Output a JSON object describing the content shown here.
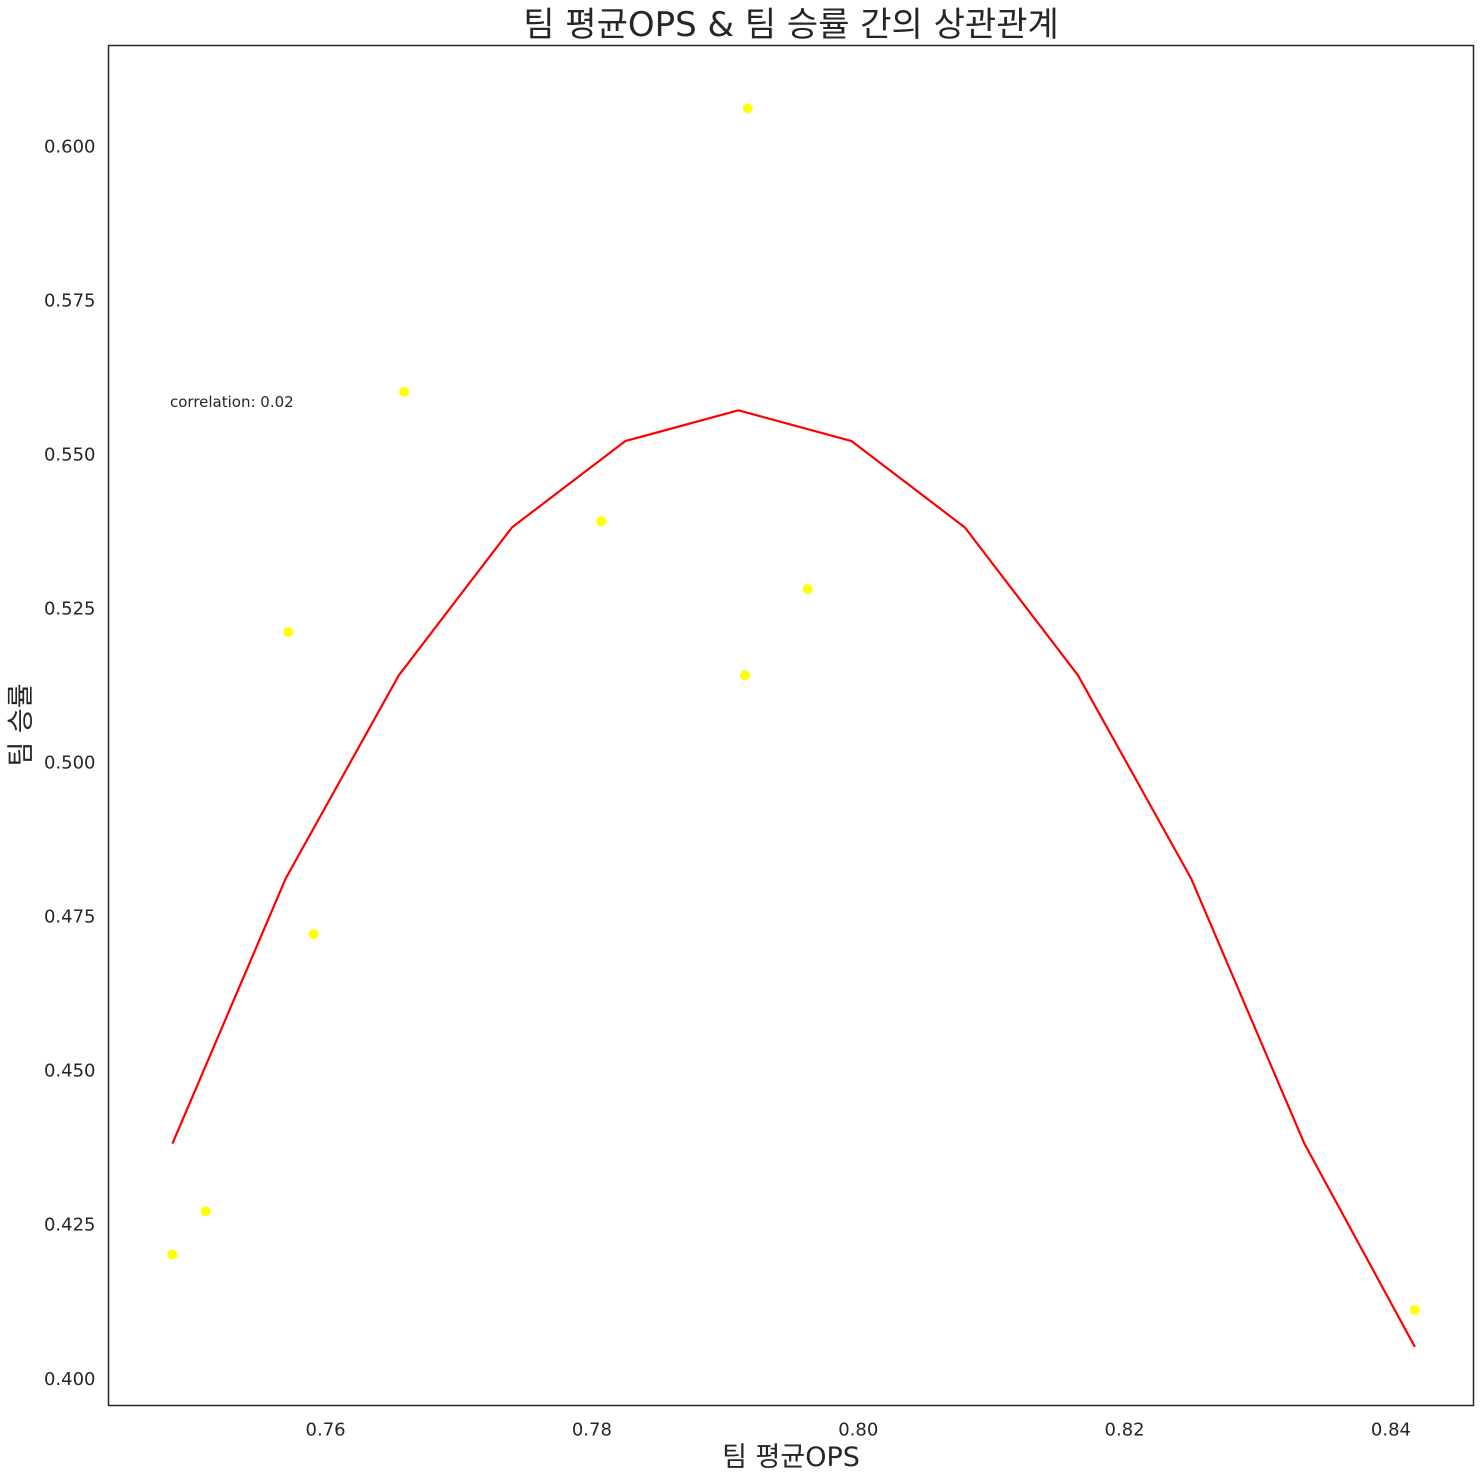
{
  "chart_data": {
    "type": "scatter",
    "title": "팀 평균OPS & 팀 승률 간의 상관관계",
    "xlabel": "팀 평균OPS",
    "ylabel": "팀 승률",
    "xlim": [
      0.7437,
      0.8462
    ],
    "ylim": [
      0.3955,
      0.6162
    ],
    "x_ticks": [
      0.76,
      0.78,
      0.8,
      0.82,
      0.84
    ],
    "x_tick_labels": [
      "0.76",
      "0.78",
      "0.80",
      "0.82",
      "0.84"
    ],
    "y_ticks": [
      0.4,
      0.425,
      0.45,
      0.475,
      0.5,
      0.525,
      0.55,
      0.575,
      0.6
    ],
    "y_tick_labels": [
      "0.400",
      "0.425",
      "0.450",
      "0.475",
      "0.500",
      "0.525",
      "0.550",
      "0.575",
      "0.600"
    ],
    "grid": false,
    "annotation": "correlation: 0.02",
    "colors": {
      "points": "#ffff00",
      "fit_line": "#ff0000",
      "axes": "#262626"
    },
    "series": [
      {
        "type": "scatter",
        "points": [
          {
            "x": 0.7485,
            "y": 0.42
          },
          {
            "x": 0.751,
            "y": 0.427
          },
          {
            "x": 0.7572,
            "y": 0.521
          },
          {
            "x": 0.7591,
            "y": 0.472
          },
          {
            "x": 0.7659,
            "y": 0.56
          },
          {
            "x": 0.7807,
            "y": 0.539
          },
          {
            "x": 0.7915,
            "y": 0.514
          },
          {
            "x": 0.7917,
            "y": 0.606
          },
          {
            "x": 0.7962,
            "y": 0.528
          },
          {
            "x": 0.8418,
            "y": 0.411
          }
        ]
      },
      {
        "type": "line",
        "fit": "quadratic",
        "points": [
          {
            "x": 0.7485,
            "y": 0.438
          },
          {
            "x": 0.757,
            "y": 0.481
          },
          {
            "x": 0.7655,
            "y": 0.514
          },
          {
            "x": 0.774,
            "y": 0.538
          },
          {
            "x": 0.7825,
            "y": 0.552
          },
          {
            "x": 0.791,
            "y": 0.557
          },
          {
            "x": 0.7995,
            "y": 0.552
          },
          {
            "x": 0.808,
            "y": 0.538
          },
          {
            "x": 0.8165,
            "y": 0.514
          },
          {
            "x": 0.825,
            "y": 0.481
          },
          {
            "x": 0.8335,
            "y": 0.438
          },
          {
            "x": 0.8418,
            "y": 0.405
          }
        ]
      }
    ]
  }
}
